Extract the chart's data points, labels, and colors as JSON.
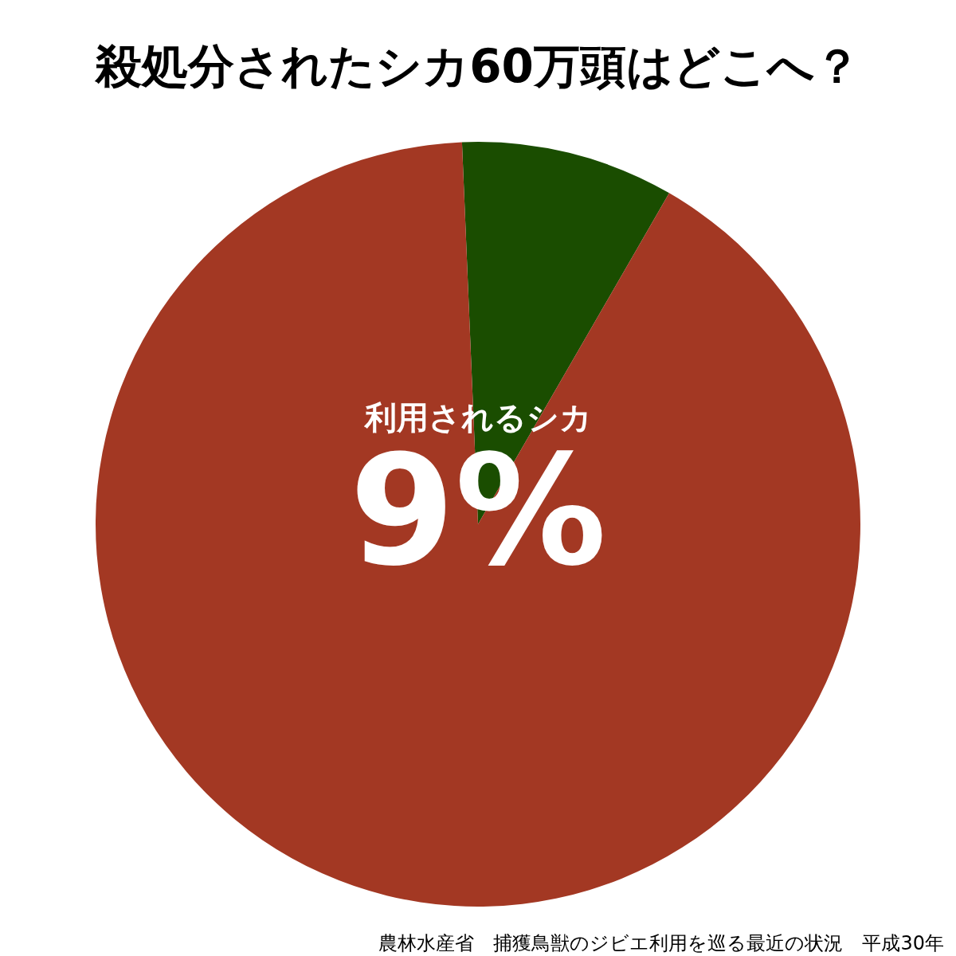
{
  "chart_data": {
    "type": "pie",
    "title": "殺処分されたシカ60万頭はどこへ？",
    "categories": [
      "利用されるシカ",
      null
    ],
    "values": [
      9,
      91
    ],
    "value_labels": [
      "9%",
      null
    ],
    "colors": [
      "#1a4d00",
      "#a33823"
    ],
    "legend": false,
    "annotations": [
      "農林水産省　捕獲鳥獣のジビエ利用を巡る最近の状況　平成30年"
    ]
  }
}
